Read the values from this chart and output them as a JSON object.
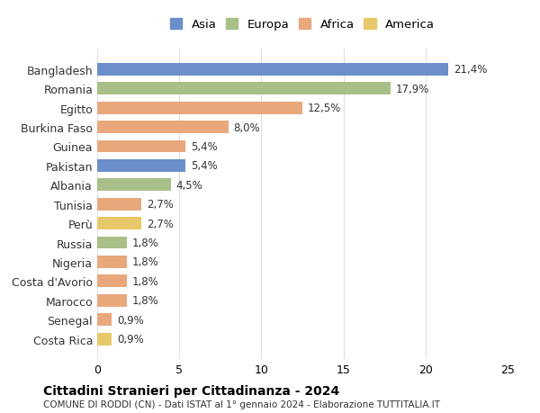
{
  "countries": [
    "Bangladesh",
    "Romania",
    "Egitto",
    "Burkina Faso",
    "Guinea",
    "Pakistan",
    "Albania",
    "Tunisia",
    "Perù",
    "Russia",
    "Nigeria",
    "Costa d'Avorio",
    "Marocco",
    "Senegal",
    "Costa Rica"
  ],
  "values": [
    21.4,
    17.9,
    12.5,
    8.0,
    5.4,
    5.4,
    4.5,
    2.7,
    2.7,
    1.8,
    1.8,
    1.8,
    1.8,
    0.9,
    0.9
  ],
  "labels": [
    "21,4%",
    "17,9%",
    "12,5%",
    "8,0%",
    "5,4%",
    "5,4%",
    "4,5%",
    "2,7%",
    "2,7%",
    "1,8%",
    "1,8%",
    "1,8%",
    "1,8%",
    "0,9%",
    "0,9%"
  ],
  "continents": [
    "Asia",
    "Europa",
    "Africa",
    "Africa",
    "Africa",
    "Asia",
    "Europa",
    "Africa",
    "America",
    "Europa",
    "Africa",
    "Africa",
    "Africa",
    "Africa",
    "America"
  ],
  "continent_colors": {
    "Asia": "#6a8fca",
    "Europa": "#a8bf87",
    "Africa": "#e8a87c",
    "America": "#e8c96a"
  },
  "legend_items": [
    "Asia",
    "Europa",
    "Africa",
    "America"
  ],
  "title": "Cittadini Stranieri per Cittadinanza - 2024",
  "subtitle": "COMUNE DI RODDI (CN) - Dati ISTAT al 1° gennaio 2024 - Elaborazione TUTTITALIA.IT",
  "xlim": [
    0,
    25
  ],
  "xticks": [
    0,
    5,
    10,
    15,
    20,
    25
  ],
  "background_color": "#ffffff",
  "grid_color": "#e0e0e0"
}
